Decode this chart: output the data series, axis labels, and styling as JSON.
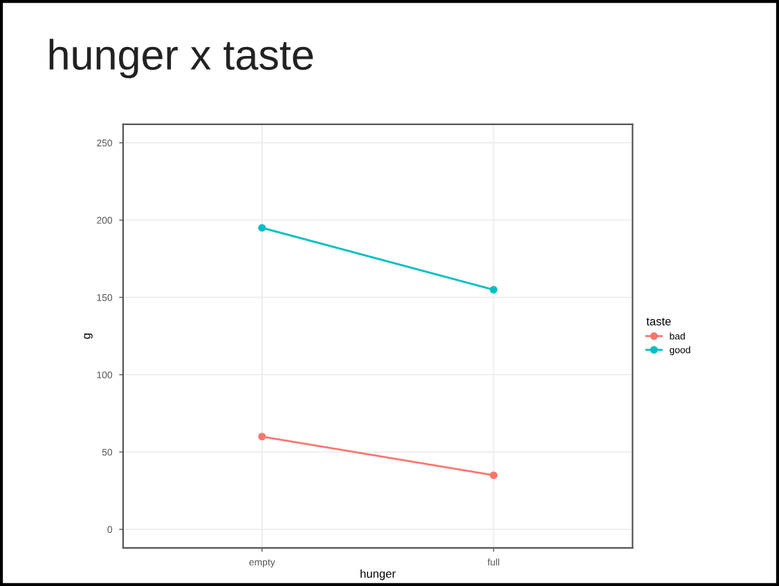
{
  "chart_data": {
    "type": "line",
    "title": "hunger x taste",
    "xlabel": "hunger",
    "ylabel": "g",
    "legend_title": "taste",
    "categories": [
      "empty",
      "full"
    ],
    "series": [
      {
        "name": "bad",
        "color": "#f8766d",
        "values": [
          60,
          35
        ]
      },
      {
        "name": "good",
        "color": "#00bfc4",
        "values": [
          195,
          155
        ]
      }
    ],
    "ylim": [
      -12,
      262
    ],
    "yticks": [
      0,
      50,
      100,
      150,
      200,
      250
    ],
    "grid": true,
    "legend": "right",
    "marker": "circle",
    "line_style": "solid"
  }
}
